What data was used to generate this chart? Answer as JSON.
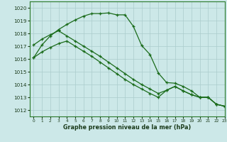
{
  "xlabel": "Graphe pression niveau de la mer (hPa)",
  "ylim": [
    1011.5,
    1020.5
  ],
  "xlim": [
    -0.5,
    23
  ],
  "yticks": [
    1012,
    1013,
    1014,
    1015,
    1016,
    1017,
    1018,
    1019,
    1020
  ],
  "xticks": [
    0,
    1,
    2,
    3,
    4,
    5,
    6,
    7,
    8,
    9,
    10,
    11,
    12,
    13,
    14,
    15,
    16,
    17,
    18,
    19,
    20,
    21,
    22,
    23
  ],
  "bg_color": "#cce8e8",
  "line_color": "#1a6b1a",
  "grid_color": "#aacccc",
  "l1x": [
    0,
    1,
    2,
    3,
    4,
    5,
    6,
    7,
    8,
    9,
    10,
    11,
    12,
    13,
    14,
    15,
    16,
    17,
    18,
    19,
    20,
    21,
    22,
    23
  ],
  "l1y": [
    1016.1,
    1017.1,
    1017.8,
    1018.3,
    1018.7,
    1019.05,
    1019.35,
    1019.55,
    1019.55,
    1019.6,
    1019.45,
    1019.45,
    1018.55,
    1017.05,
    1016.35,
    1014.9,
    1014.15,
    1014.1,
    1013.85,
    1013.5,
    1013.0,
    1013.0,
    1012.45,
    1012.3
  ],
  "l2x": [
    0,
    1,
    2,
    3,
    4,
    5,
    6,
    7,
    8,
    9,
    10,
    11,
    12,
    13,
    14,
    15,
    16,
    17,
    18,
    19,
    20,
    21,
    22,
    23
  ],
  "l2y": [
    1017.1,
    1017.55,
    1017.9,
    1018.2,
    1017.8,
    1017.4,
    1017.0,
    1016.6,
    1016.2,
    1015.75,
    1015.3,
    1014.85,
    1014.4,
    1014.0,
    1013.65,
    1013.3,
    1013.55,
    1013.85,
    1013.5,
    1013.2,
    1013.0,
    1013.0,
    1012.45,
    1012.3
  ],
  "l3x": [
    0,
    1,
    2,
    3,
    4,
    5,
    6,
    7,
    8,
    9,
    10,
    11,
    12,
    13,
    14,
    15,
    16,
    17,
    18,
    19,
    20,
    21,
    22,
    23
  ],
  "l3y": [
    1016.1,
    1016.55,
    1016.9,
    1017.2,
    1017.4,
    1017.0,
    1016.6,
    1016.2,
    1015.75,
    1015.3,
    1014.85,
    1014.4,
    1014.0,
    1013.65,
    1013.3,
    1013.0,
    1013.55,
    1013.85,
    1013.5,
    1013.2,
    1013.0,
    1013.0,
    1012.45,
    1012.3
  ]
}
